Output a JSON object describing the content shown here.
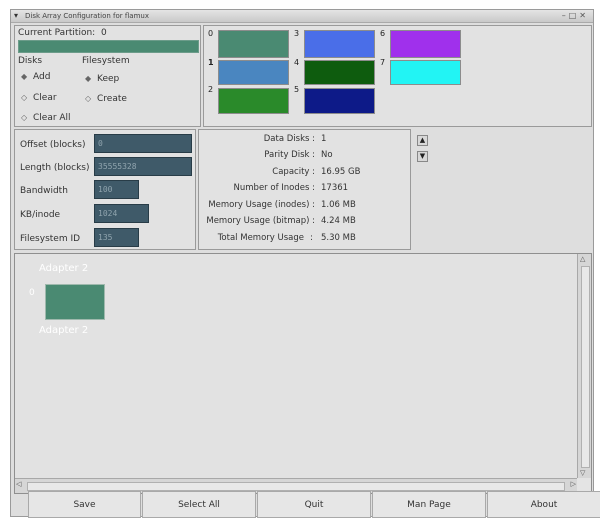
{
  "window": {
    "title": "Disk Array Configuration for flamux"
  },
  "partition": {
    "label": "Current Partition:",
    "value": "0",
    "bar_color": "#4a8a72"
  },
  "disks": {
    "header": "Disks",
    "add": "Add",
    "clear": "Clear",
    "clear_all": "Clear All"
  },
  "filesystem": {
    "header": "Filesystem",
    "keep": "Keep",
    "create": "Create"
  },
  "palette": [
    {
      "num": "0",
      "color": "#4a8a72"
    },
    {
      "num": "1",
      "color": "#4a86c0"
    },
    {
      "num": "2",
      "color": "#2a8a2a"
    },
    {
      "num": "3",
      "color": "#4a6ee8"
    },
    {
      "num": "4",
      "color": "#0e5c0e"
    },
    {
      "num": "5",
      "color": "#0d1a88"
    },
    {
      "num": "6",
      "color": "#a030ec"
    },
    {
      "num": "7",
      "color": "#22f4f4"
    }
  ],
  "params": {
    "offset_label": "Offset (blocks)",
    "offset_value": "0",
    "length_label": "Length (blocks)",
    "length_value": "35555328",
    "bandwidth_label": "Bandwidth",
    "bandwidth_value": "100",
    "kb_inode_label": "KB/inode",
    "kb_inode_value": "1024",
    "fsid_label": "Filesystem ID",
    "fsid_value": "135"
  },
  "info": {
    "data_disks_label": "Data Disks :",
    "data_disks_value": "1",
    "parity_disk_label": "Parity Disk :",
    "parity_disk_value": "No",
    "capacity_label": "Capacity :",
    "capacity_value": "16.95 GB",
    "inodes_label": "Number of Inodes :",
    "inodes_value": "17361",
    "mem_inodes_label": "Memory Usage (inodes) :",
    "mem_inodes_value": "1.06 MB",
    "mem_bitmap_label": "Memory Usage (bitmap) :",
    "mem_bitmap_value": "4.24 MB",
    "total_mem_label": "Total Memory Usage",
    "total_mem_sep": ":",
    "total_mem_value": "5.30 MB"
  },
  "canvas": {
    "adapter_top": "Adapter 2",
    "adapter_bottom": "Adapter 2",
    "disk_num": "0",
    "disk_color": "#4a8a72"
  },
  "buttons": {
    "save": "Save",
    "select_all": "Select All",
    "quit": "Quit",
    "man_page": "Man Page",
    "about": "About"
  }
}
